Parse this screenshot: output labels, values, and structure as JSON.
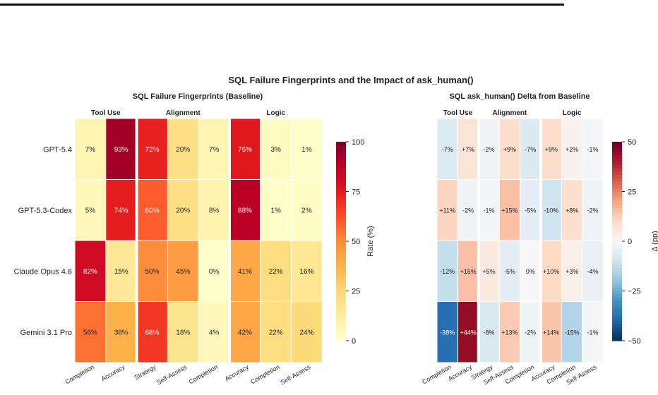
{
  "suptitle": "SQL Failure Fingerprints and the Impact of ask_human()",
  "chart_data": [
    {
      "type": "heatmap",
      "title": "SQL Failure Fingerprints (Baseline)",
      "rows": [
        "GPT-5.4",
        "GPT-5.3-Codex",
        "Claude Opus 4.6",
        "Gemini 3.1 Pro"
      ],
      "columns": [
        "Completion",
        "Accuracy",
        "Strategy",
        "Self-Assess",
        "Completion",
        "Accuracy",
        "Completion",
        "Self-Assess"
      ],
      "groups": [
        {
          "label": "Tool Use",
          "span": 2
        },
        {
          "label": "Alignment",
          "span": 3
        },
        {
          "label": "Logic",
          "span": 3
        }
      ],
      "values": [
        [
          7,
          93,
          73,
          20,
          7,
          76,
          3,
          1
        ],
        [
          5,
          74,
          60,
          20,
          8,
          88,
          1,
          2
        ],
        [
          82,
          15,
          50,
          45,
          0,
          41,
          22,
          16
        ],
        [
          56,
          38,
          68,
          18,
          4,
          42,
          22,
          24
        ]
      ],
      "cell_labels": [
        [
          "7%",
          "93%",
          "73%",
          "20%",
          "7%",
          "76%",
          "3%",
          "1%"
        ],
        [
          "5%",
          "74%",
          "60%",
          "20%",
          "8%",
          "88%",
          "1%",
          "2%"
        ],
        [
          "82%",
          "15%",
          "50%",
          "45%",
          "0%",
          "41%",
          "22%",
          "16%"
        ],
        [
          "56%",
          "38%",
          "68%",
          "18%",
          "4%",
          "42%",
          "22%",
          "24%"
        ]
      ],
      "colormap": "YlOrRd",
      "colorbar": {
        "label": "Rate (%)",
        "range": [
          0,
          100
        ],
        "ticks": [
          "0",
          "25",
          "50",
          "75",
          "100"
        ]
      }
    },
    {
      "type": "heatmap",
      "title": "SQL ask_human() Delta from Baseline",
      "rows": [
        "GPT-5.4",
        "GPT-5.3-Codex",
        "Claude Opus 4.6",
        "Gemini 3.1 Pro"
      ],
      "columns": [
        "Completion",
        "Accuracy",
        "Strategy",
        "Self-Assess",
        "Completion",
        "Accuracy",
        "Completion",
        "Self-Assess"
      ],
      "groups": [
        {
          "label": "Tool Use",
          "span": 2
        },
        {
          "label": "Alignment",
          "span": 3
        },
        {
          "label": "Logic",
          "span": 3
        }
      ],
      "values": [
        [
          -7,
          7,
          -2,
          9,
          -7,
          9,
          2,
          -1
        ],
        [
          11,
          -2,
          -1,
          15,
          -5,
          -10,
          8,
          -2
        ],
        [
          -12,
          15,
          5,
          -5,
          0,
          10,
          3,
          -4
        ],
        [
          -38,
          44,
          -8,
          13,
          -2,
          14,
          -15,
          -1
        ]
      ],
      "cell_labels": [
        [
          "-7%",
          "+7%",
          "-2%",
          "+9%",
          "-7%",
          "+9%",
          "+2%",
          "-1%"
        ],
        [
          "+11%",
          "-2%",
          "-1%",
          "+15%",
          "-5%",
          "-10%",
          "+8%",
          "-2%"
        ],
        [
          "-12%",
          "+15%",
          "+5%",
          "-5%",
          "0%",
          "+10%",
          "+3%",
          "-4%"
        ],
        [
          "-38%",
          "+44%",
          "-8%",
          "+13%",
          "-2%",
          "+14%",
          "-15%",
          "-1%"
        ]
      ],
      "colormap": "RdBu_r",
      "colorbar": {
        "label": "Δ (pp)",
        "range": [
          -50,
          50
        ],
        "ticks": [
          "−50",
          "−25",
          "0",
          "25",
          "50"
        ]
      }
    }
  ]
}
